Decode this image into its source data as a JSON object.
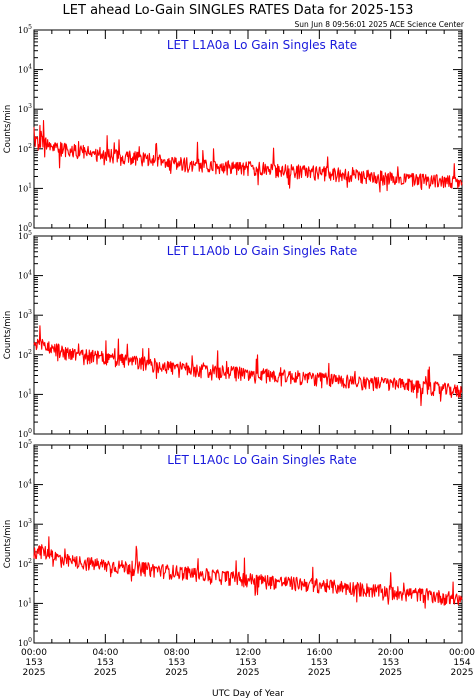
{
  "title": "LET ahead Lo-Gain SINGLES RATES Data for 2025-153",
  "timestamp": "Sun Jun  8 09:56:01 2025 ACE Science Center",
  "colors": {
    "trace": "#ff0000",
    "panel_title": "#1a1adc",
    "axes": "#000000"
  },
  "chart_data": [
    {
      "type": "line",
      "title": "LET L1A0a Lo Gain Singles Rate",
      "ylabel": "Counts/min",
      "yscale": "log",
      "ylim": [
        1,
        100000
      ],
      "xlim_hours": [
        0,
        24
      ],
      "xlabel": "",
      "trend_hours": [
        0,
        0.5,
        1,
        2,
        4,
        6,
        8,
        10,
        12,
        14,
        16,
        18,
        20,
        22,
        24
      ],
      "trend_values": [
        140,
        155,
        120,
        95,
        75,
        60,
        45,
        38,
        34,
        30,
        26,
        22,
        19,
        17,
        14
      ]
    },
    {
      "type": "line",
      "title": "LET L1A0b Lo Gain Singles Rate",
      "ylabel": "Counts/min",
      "yscale": "log",
      "ylim": [
        1,
        100000
      ],
      "xlim_hours": [
        0,
        24
      ],
      "xlabel": "",
      "trend_hours": [
        0,
        0.5,
        1,
        2,
        4,
        6,
        8,
        10,
        12,
        14,
        16,
        18,
        20,
        22,
        24
      ],
      "trend_values": [
        170,
        190,
        150,
        110,
        85,
        65,
        48,
        40,
        34,
        30,
        26,
        22,
        19,
        16,
        12
      ]
    },
    {
      "type": "line",
      "title": "LET L1A0c Lo Gain Singles Rate",
      "ylabel": "Counts/min",
      "yscale": "log",
      "ylim": [
        1,
        100000
      ],
      "xlim_hours": [
        0,
        24
      ],
      "xlabel": "UTC Day of Year",
      "trend_hours": [
        0,
        0.5,
        1,
        2,
        4,
        6,
        8,
        10,
        12,
        14,
        16,
        18,
        20,
        22,
        24
      ],
      "trend_values": [
        210,
        220,
        160,
        120,
        95,
        80,
        65,
        52,
        42,
        35,
        30,
        25,
        20,
        17,
        13
      ]
    }
  ],
  "x_ticks": [
    {
      "hours": 0,
      "time": "00:00",
      "doy": "153",
      "year": "2025"
    },
    {
      "hours": 4,
      "time": "04:00",
      "doy": "153",
      "year": "2025"
    },
    {
      "hours": 8,
      "time": "08:00",
      "doy": "153",
      "year": "2025"
    },
    {
      "hours": 12,
      "time": "12:00",
      "doy": "153",
      "year": "2025"
    },
    {
      "hours": 16,
      "time": "16:00",
      "doy": "153",
      "year": "2025"
    },
    {
      "hours": 20,
      "time": "20:00",
      "doy": "153",
      "year": "2025"
    },
    {
      "hours": 24,
      "time": "00:00",
      "doy": "154",
      "year": "2025"
    }
  ],
  "y_ticks": [
    {
      "base": "10",
      "exp": "0",
      "value": 1
    },
    {
      "base": "10",
      "exp": "1",
      "value": 10
    },
    {
      "base": "10",
      "exp": "2",
      "value": 100
    },
    {
      "base": "10",
      "exp": "3",
      "value": 1000
    },
    {
      "base": "10",
      "exp": "4",
      "value": 10000
    },
    {
      "base": "10",
      "exp": "5",
      "value": 100000
    }
  ]
}
